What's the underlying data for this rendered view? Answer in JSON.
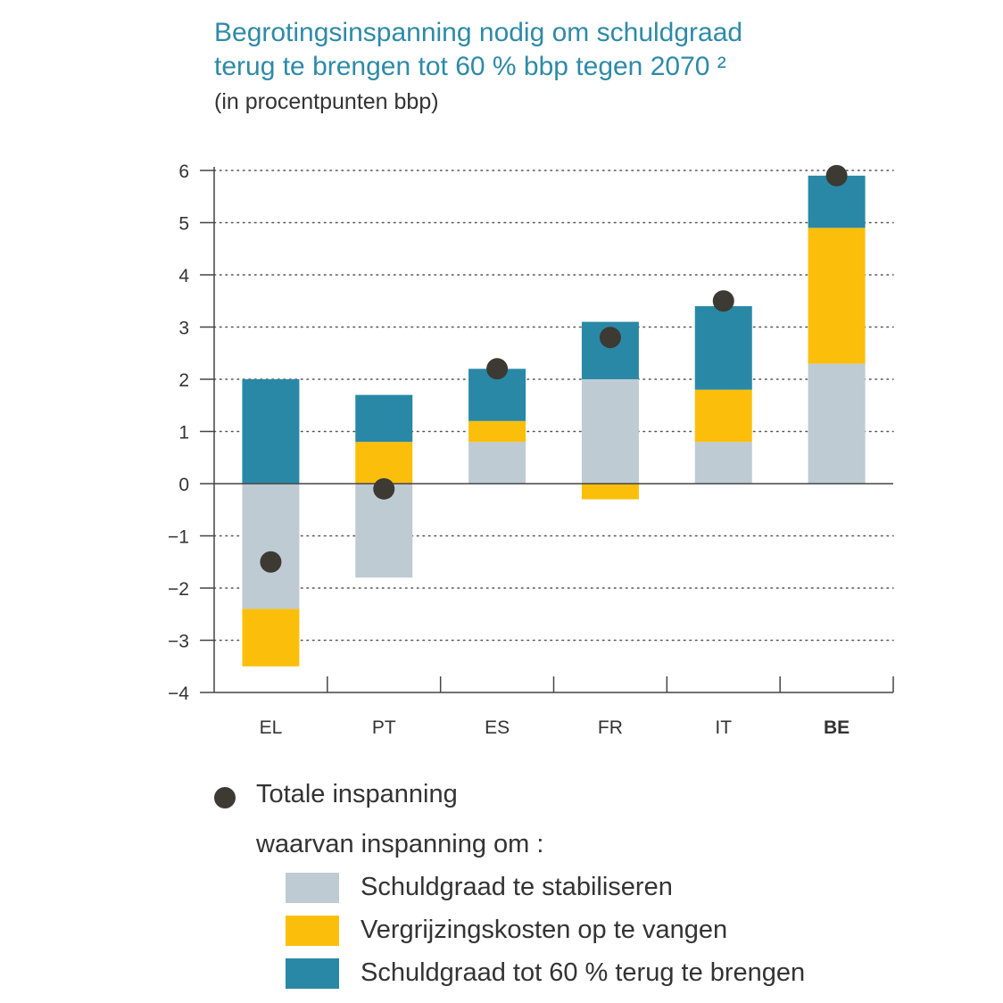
{
  "title": {
    "line1": "Begrotingsinspanning nodig om schuldgraad",
    "line2": "terug te brengen tot 60 % bbp tegen 2070 ²"
  },
  "subtitle": "(in procentpunten bbp)",
  "colors": {
    "stabilise": "#bfcbd3",
    "ageing": "#fbbf0b",
    "reduce": "#2988a6",
    "total": "#3c3a33",
    "grid": "#555555"
  },
  "legend": {
    "total_label": "Totale inspanning",
    "of_which_label": "waarvan inspanning om :",
    "items": [
      {
        "key": "stabilise",
        "label": "Schuldgraad te stabiliseren"
      },
      {
        "key": "ageing",
        "label": "Vergrijzingskosten op te vangen"
      },
      {
        "key": "reduce",
        "label": "Schuldgraad tot 60 % terug te brengen"
      }
    ]
  },
  "chart_data": {
    "type": "bar",
    "stacked": true,
    "title": "Begrotingsinspanning nodig om schuldgraad terug te brengen tot 60 % bbp tegen 2070 ²",
    "ylabel": "(in procentpunten bbp)",
    "ylim": [
      -4,
      6
    ],
    "yticks": [
      "−4",
      "−3",
      "−2",
      "−1",
      "0",
      "1",
      "2",
      "3",
      "4",
      "5",
      "6"
    ],
    "ytick_values": [
      -4,
      -3,
      -2,
      -1,
      0,
      1,
      2,
      3,
      4,
      5,
      6
    ],
    "grid": "dotted horizontal",
    "categories": [
      "EL",
      "PT",
      "ES",
      "FR",
      "IT",
      "BE"
    ],
    "bold_category": "BE",
    "series": [
      {
        "name": "Schuldgraad te stabiliseren",
        "key": "stabilise",
        "values": [
          -2.4,
          -1.8,
          0.8,
          2.0,
          0.8,
          2.3
        ]
      },
      {
        "name": "Vergrijzingskosten op te vangen",
        "key": "ageing",
        "values": [
          -1.1,
          0.8,
          0.4,
          -0.3,
          1.0,
          2.6
        ]
      },
      {
        "name": "Schuldgraad tot 60 % terug te brengen",
        "key": "reduce",
        "values": [
          2.0,
          0.9,
          1.0,
          1.1,
          1.6,
          1.0
        ]
      }
    ],
    "totals": {
      "name": "Totale inspanning",
      "values": [
        -1.5,
        -0.1,
        2.2,
        2.8,
        3.5,
        5.9
      ]
    }
  }
}
